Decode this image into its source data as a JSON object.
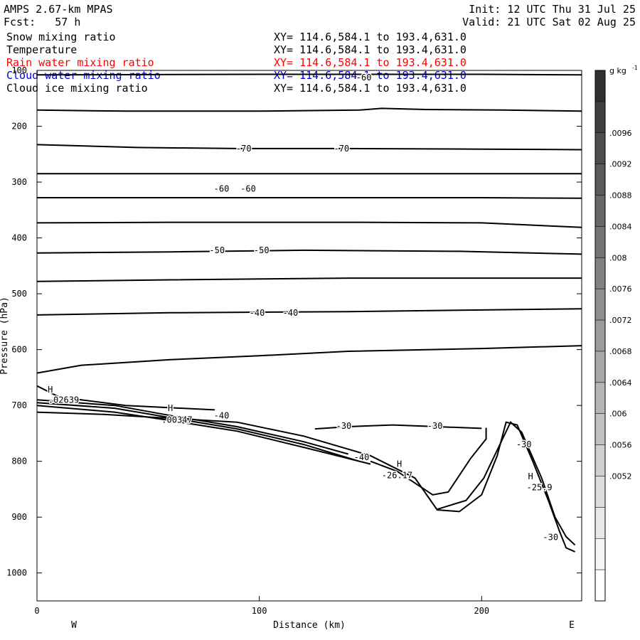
{
  "header": {
    "model": "AMPS 2.67-km MPAS",
    "forecast": "Fcst:   57 h",
    "init": "Init: 12 UTC Thu 31 Jul 25",
    "valid": "Valid: 21 UTC Sat 02 Aug 25"
  },
  "layers": [
    {
      "name": "Snow mixing ratio",
      "xy": "XY= 114.6,584.1 to 193.4,631.0",
      "color": "#000000"
    },
    {
      "name": "Temperature",
      "xy": "XY= 114.6,584.1 to 193.4,631.0",
      "color": "#000000"
    },
    {
      "name": "Rain water mixing ratio",
      "xy": "XY= 114.6,584.1 to 193.4,631.0",
      "color": "#ff0000"
    },
    {
      "name": "Cloud water mixing ratio",
      "xy": "XY= 114.6,584.1 to 193.4,631.0",
      "color": "#0000cc"
    },
    {
      "name": "Cloud ice mixing ratio",
      "xy": "XY= 114.6,584.1 to 193.4,631.0",
      "color": "#000000"
    }
  ],
  "chart_data": {
    "type": "contour",
    "xlabel": "Distance (km)",
    "ylabel": "Pressure (hPa)",
    "xlim": [
      0,
      245
    ],
    "ylim": [
      1050,
      100
    ],
    "x_ticks": [
      0,
      100,
      200
    ],
    "y_ticks": [
      100,
      200,
      300,
      400,
      500,
      600,
      700,
      800,
      900,
      1000
    ],
    "x_end_labels": {
      "left": "W",
      "right": "E"
    },
    "colorbar": {
      "unit": "g kg",
      "unit_exp": "-1",
      "labels": [
        ".0096",
        ".0092",
        ".0088",
        ".0084",
        ".008",
        ".0076",
        ".0072",
        ".0068",
        ".0064",
        ".006",
        ".0056",
        ".0052"
      ],
      "colors": [
        "#303030",
        "#404040",
        "#4d4d4d",
        "#5a5a5a",
        "#676767",
        "#747474",
        "#818181",
        "#8e8e8e",
        "#9b9b9b",
        "#a8a8a8",
        "#b5b5b5",
        "#c2c2c2",
        "#cfcfcf",
        "#dcdcdc",
        "#e9e9e9",
        "#f6f6f6",
        "#ffffff"
      ]
    },
    "isotherms": [
      {
        "points": [
          [
            0,
            108
          ],
          [
            100,
            107
          ],
          [
            200,
            107
          ],
          [
            245,
            108
          ]
        ]
      },
      {
        "points": [
          [
            0,
            171
          ],
          [
            40,
            173
          ],
          [
            100,
            173
          ],
          [
            145,
            171
          ],
          [
            155,
            168
          ],
          [
            175,
            170
          ],
          [
            210,
            171
          ],
          [
            245,
            173
          ]
        ]
      },
      {
        "points": [
          [
            0,
            233
          ],
          [
            45,
            238
          ],
          [
            90,
            240
          ],
          [
            140,
            240
          ],
          [
            200,
            241
          ],
          [
            245,
            242
          ]
        ]
      },
      {
        "points": [
          [
            0,
            285
          ],
          [
            60,
            285
          ],
          [
            120,
            285
          ],
          [
            200,
            285
          ],
          [
            245,
            285
          ]
        ]
      },
      {
        "points": [
          [
            0,
            328
          ],
          [
            60,
            328
          ],
          [
            130,
            328
          ],
          [
            200,
            328
          ],
          [
            245,
            329
          ]
        ]
      },
      {
        "points": [
          [
            0,
            373
          ],
          [
            60,
            372
          ],
          [
            140,
            372
          ],
          [
            200,
            373
          ],
          [
            245,
            381
          ]
        ]
      },
      {
        "points": [
          [
            0,
            427
          ],
          [
            60,
            425
          ],
          [
            120,
            422
          ],
          [
            190,
            424
          ],
          [
            245,
            429
          ]
        ]
      },
      {
        "points": [
          [
            0,
            478
          ],
          [
            60,
            475
          ],
          [
            140,
            472
          ],
          [
            200,
            472
          ],
          [
            245,
            472
          ]
        ]
      },
      {
        "points": [
          [
            0,
            538
          ],
          [
            60,
            534
          ],
          [
            140,
            532
          ],
          [
            200,
            529
          ],
          [
            245,
            527
          ]
        ]
      },
      {
        "points": [
          [
            0,
            642
          ],
          [
            20,
            628
          ],
          [
            60,
            618
          ],
          [
            100,
            611
          ],
          [
            140,
            603
          ],
          [
            200,
            598
          ],
          [
            245,
            593
          ]
        ]
      },
      {
        "points": [
          [
            0,
            712
          ],
          [
            30,
            716
          ],
          [
            60,
            723
          ],
          [
            90,
            730
          ],
          [
            120,
            755
          ],
          [
            150,
            790
          ],
          [
            170,
            830
          ],
          [
            180,
            887
          ],
          [
            190,
            890
          ],
          [
            200,
            860
          ],
          [
            207,
            790
          ],
          [
            211,
            730
          ],
          [
            216,
            735
          ],
          [
            223,
            800
          ],
          [
            230,
            870
          ],
          [
            235,
            925
          ],
          [
            238,
            955
          ],
          [
            242,
            962
          ]
        ]
      },
      {
        "points": [
          [
            180,
            886
          ],
          [
            193,
            870
          ],
          [
            201,
            830
          ],
          [
            207,
            780
          ],
          [
            213,
            730
          ],
          [
            218,
            748
          ],
          [
            227,
            830
          ],
          [
            233,
            900
          ],
          [
            238,
            935
          ],
          [
            242,
            950
          ]
        ]
      },
      {
        "points": [
          [
            150,
            800
          ],
          [
            162,
            818
          ],
          [
            178,
            860
          ],
          [
            185,
            855
          ],
          [
            195,
            795
          ],
          [
            202,
            760
          ],
          [
            202,
            740
          ]
        ]
      },
      {
        "points": [
          [
            125,
            742
          ],
          [
            140,
            738
          ],
          [
            160,
            735
          ],
          [
            180,
            738
          ],
          [
            200,
            741
          ]
        ]
      },
      {
        "points": [
          [
            0,
            665
          ],
          [
            10,
            685
          ],
          [
            40,
            700
          ],
          [
            80,
            708
          ]
        ]
      },
      {
        "points": [
          [
            0,
            690
          ],
          [
            35,
            700
          ],
          [
            60,
            718
          ],
          [
            90,
            738
          ],
          [
            120,
            765
          ],
          [
            140,
            787
          ]
        ]
      },
      {
        "points": [
          [
            0,
            695
          ],
          [
            35,
            705
          ],
          [
            60,
            722
          ],
          [
            90,
            742
          ],
          [
            120,
            770
          ],
          [
            145,
            800
          ]
        ]
      },
      {
        "points": [
          [
            0,
            700
          ],
          [
            35,
            712
          ],
          [
            60,
            727
          ],
          [
            90,
            746
          ],
          [
            120,
            775
          ],
          [
            150,
            805
          ]
        ]
      }
    ],
    "contour_labels": [
      {
        "text": "-70",
        "x": 93,
        "p": 240
      },
      {
        "text": "-70",
        "x": 137,
        "p": 240
      },
      {
        "text": "-60",
        "x": 83,
        "p": 312
      },
      {
        "text": "-60",
        "x": 95,
        "p": 312
      },
      {
        "text": "-50",
        "x": 81,
        "p": 422
      },
      {
        "text": "-50",
        "x": 101,
        "p": 422
      },
      {
        "text": "-40",
        "x": 99,
        "p": 534
      },
      {
        "text": "-40",
        "x": 114,
        "p": 534
      },
      {
        "text": "-40",
        "x": 83,
        "p": 718
      },
      {
        "text": "-40",
        "x": 146,
        "p": 793
      },
      {
        "text": "-30",
        "x": 138,
        "p": 737
      },
      {
        "text": "-30",
        "x": 179,
        "p": 737
      },
      {
        "text": "-30",
        "x": 219,
        "p": 770
      },
      {
        "text": "-30",
        "x": 231,
        "p": 936
      },
      {
        "text": "-60",
        "x": 147,
        "p": 113
      },
      {
        "text": "H",
        "x": 6,
        "p": 672
      },
      {
        "text": ".02639",
        "x": 12,
        "p": 690
      },
      {
        "text": "H",
        "x": 60,
        "p": 705
      },
      {
        "text": ".00347",
        "x": 63,
        "p": 726
      },
      {
        "text": "H",
        "x": 163,
        "p": 805
      },
      {
        "text": "-26.17",
        "x": 162,
        "p": 825
      },
      {
        "text": "H",
        "x": 222,
        "p": 827
      },
      {
        "text": "-25.9",
        "x": 226,
        "p": 847
      }
    ]
  }
}
